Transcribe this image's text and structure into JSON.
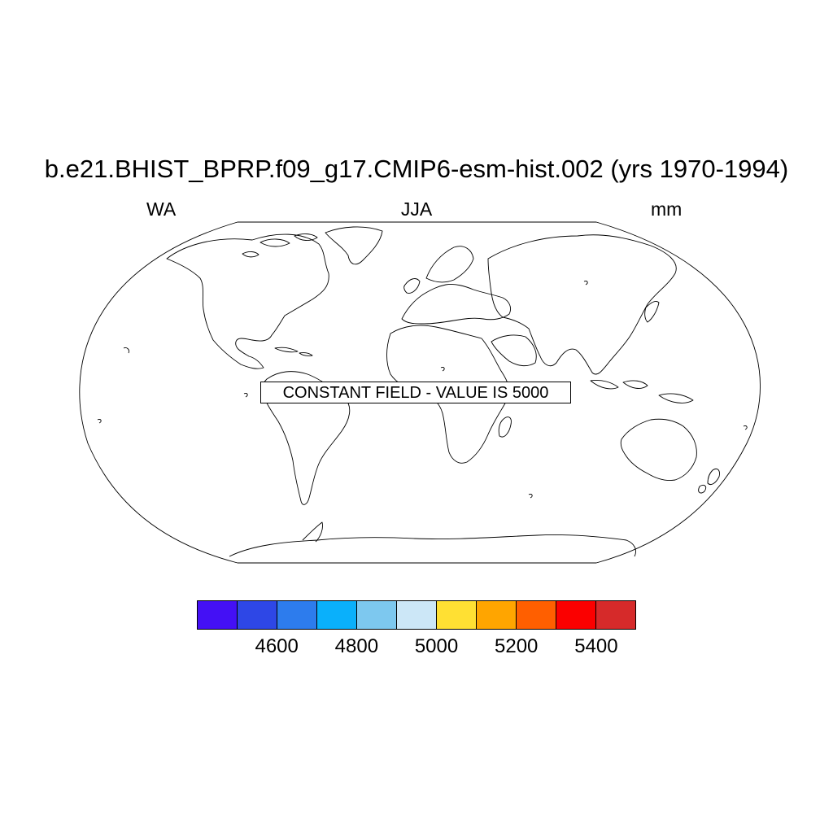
{
  "title": "b.e21.BHIST_BPRP.f09_g17.CMIP6-esm-hist.002 (yrs 1970-1994)",
  "subtitle": {
    "left": "WA",
    "center": "JJA",
    "right": "mm"
  },
  "notice": "CONSTANT FIELD - VALUE IS 5000",
  "colorbar": {
    "colors": [
      "#4410f5",
      "#2e47e6",
      "#2d7ced",
      "#0ab0fb",
      "#7dc8ef",
      "#cce7f7",
      "#ffe033",
      "#ffa500",
      "#ff5f00",
      "#fb0000",
      "#d62a2a"
    ],
    "labels": [
      "4600",
      "4800",
      "5000",
      "5200",
      "5400"
    ]
  }
}
